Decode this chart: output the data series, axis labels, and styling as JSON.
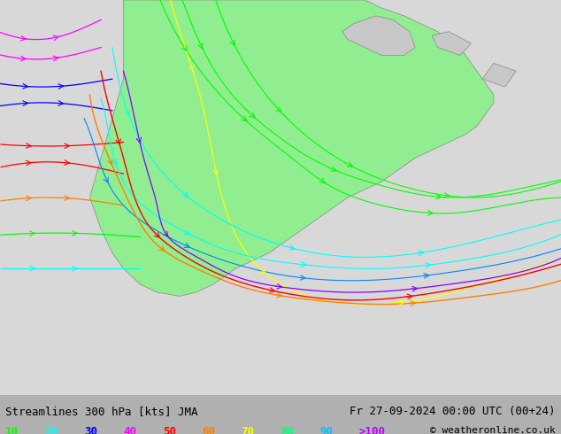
{
  "title_left": "Streamlines 300 hPa [kts] JMA",
  "title_right": "Fr 27-09-2024 00:00 UTC (00+24)",
  "copyright": "© weatheronline.co.uk",
  "legend_labels": [
    "10",
    "20",
    "30",
    "40",
    "50",
    "60",
    "70",
    "80",
    "90",
    ">100"
  ],
  "legend_colors": [
    "#00ff00",
    "#00ffff",
    "#0000ff",
    "#ff00ff",
    "#ff0000",
    "#ff8000",
    "#ffff00",
    "#00ff80",
    "#00c0ff",
    "#c000ff"
  ],
  "bg_color": "#c8c8c8",
  "land_color": "#90ee90",
  "ocean_color": "#d8d8d8",
  "text_color": "#000000",
  "figsize": [
    6.34,
    4.9
  ],
  "dpi": 100
}
